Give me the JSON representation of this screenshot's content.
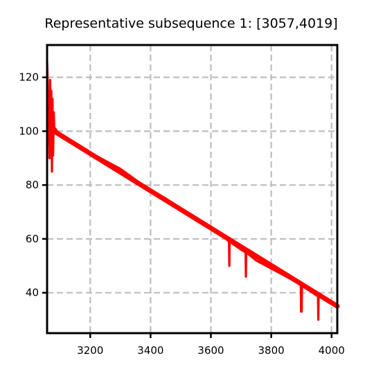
{
  "chart_data": {
    "type": "line",
    "title": "Representative subsequence 1: [3057,4019]",
    "xlabel": "",
    "ylabel": "",
    "xlim": [
      3057,
      4019
    ],
    "ylim": [
      25,
      132
    ],
    "x_ticks": [
      3200,
      3400,
      3600,
      3800,
      4000
    ],
    "y_ticks": [
      40,
      60,
      80,
      100,
      120
    ],
    "x_tick_labels": [
      "3200",
      "3400",
      "3600",
      "3800",
      "4000"
    ],
    "y_tick_labels": [
      "40",
      "60",
      "80",
      "100",
      "120"
    ],
    "grid": true,
    "legend": "none",
    "series": [
      {
        "color": "#ff0000",
        "trend": {
          "x": [
            3080,
            4019
          ],
          "y": [
            100,
            35
          ]
        },
        "x": [
          3057,
          3059,
          3061,
          3063,
          3065,
          3067,
          3069,
          3071,
          3073,
          3075,
          3077,
          3079,
          3081,
          3084,
          3090,
          3100,
          3150,
          3200,
          3250,
          3300,
          3350,
          3400,
          3450,
          3500,
          3550,
          3600,
          3650,
          3660,
          3661,
          3662,
          3700,
          3715,
          3716,
          3717,
          3750,
          3800,
          3850,
          3898,
          3899,
          3900,
          3901,
          3902,
          3950,
          3955,
          3956,
          3957,
          4000,
          4019
        ],
        "y": [
          126,
          118,
          95,
          110,
          90,
          119,
          100,
          115,
          85,
          112,
          91,
          107,
          100,
          101,
          100,
          99,
          95,
          92,
          89,
          86,
          82,
          78,
          75,
          71,
          67,
          64,
          60,
          59,
          50,
          59,
          56,
          55,
          46,
          55,
          52,
          49,
          46,
          43,
          33,
          43,
          33,
          43,
          39,
          39,
          30,
          39,
          36,
          35
        ]
      }
    ]
  }
}
